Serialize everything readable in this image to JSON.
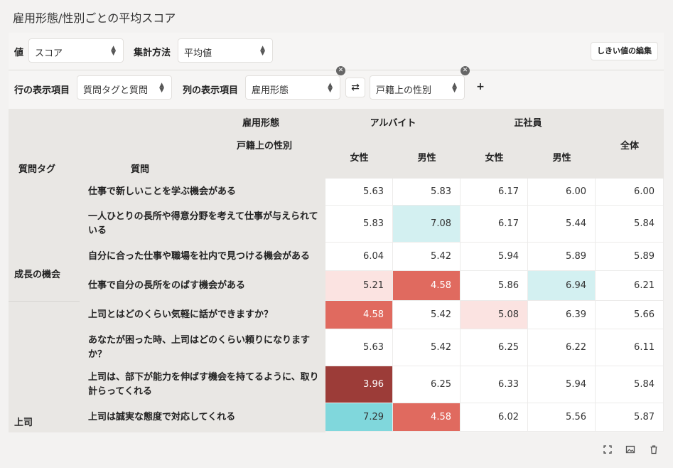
{
  "title": "雇用形態/性別ごとの平均スコア",
  "controls": {
    "value_label": "値",
    "value_select": "スコア",
    "agg_label": "集計方法",
    "agg_select": "平均値",
    "edit_threshold": "しきい値の編集",
    "row_label": "行の表示項目",
    "row_select": "質問タグと質問",
    "col_label": "列の表示項目",
    "col_select_1": "雇用形態",
    "col_select_2": "戸籍上の性別",
    "swap_symbol": "⇄",
    "add_symbol": "+"
  },
  "table": {
    "col_dim_1": "雇用形態",
    "col_dim_2": "戸籍上の性別",
    "row_header_tag": "質問タグ",
    "row_header_question": "質問",
    "group_1": "アルバイト",
    "group_2": "正社員",
    "col_female_1": "女性",
    "col_male_1": "男性",
    "col_female_2": "女性",
    "col_male_2": "男性",
    "col_total": "全体",
    "tags": [
      "成長の機会",
      "上司"
    ],
    "rows": [
      {
        "question": "仕事で新しいことを学ぶ機会がある",
        "values": [
          "5.63",
          "5.83",
          "6.17",
          "6.00",
          "6.00"
        ]
      },
      {
        "question": "一人ひとりの長所や得意分野を考えて仕事が与えられている",
        "values": [
          "5.83",
          "7.08",
          "6.17",
          "5.44",
          "5.84"
        ]
      },
      {
        "question": "自分に合った仕事や職場を社内で見つける機会がある",
        "values": [
          "6.04",
          "5.42",
          "5.94",
          "5.89",
          "5.89"
        ]
      },
      {
        "question": "仕事で自分の長所をのばす機会がある",
        "values": [
          "5.21",
          "4.58",
          "5.86",
          "6.94",
          "6.21"
        ]
      },
      {
        "question": "上司とはどのくらい気軽に話ができますか？",
        "values": [
          "4.58",
          "5.42",
          "5.08",
          "6.39",
          "5.66"
        ]
      },
      {
        "question": "あなたが困った時、上司はどのくらい頼りになりますか？",
        "values": [
          "5.63",
          "5.42",
          "6.25",
          "6.22",
          "6.11"
        ]
      },
      {
        "question": "上司は、部下が能力を伸ばす機会を持てるように、取り計らってくれる",
        "values": [
          "3.96",
          "6.25",
          "6.33",
          "5.94",
          "5.84"
        ]
      },
      {
        "question": "上司は誠実な態度で対応してくれる",
        "values": [
          "7.29",
          "4.58",
          "6.02",
          "5.56",
          "5.87"
        ]
      }
    ]
  },
  "colors": {
    "header_bg": "#e9e7e4",
    "cyan_light": "#d3f0f1",
    "cyan_mid": "#80d7dc",
    "pink_light": "#fbe3e1",
    "red": "#e06a5f",
    "dark_red": "#9c3c38"
  },
  "icons": [
    "fullscreen-icon",
    "image-icon",
    "trash-icon",
    "close-icon",
    "swap-icon",
    "plus-icon"
  ]
}
